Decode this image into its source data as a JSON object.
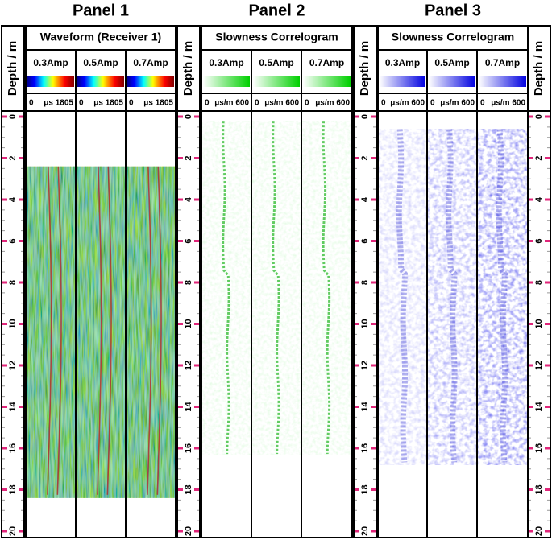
{
  "depth_axis": {
    "label": "Depth / m",
    "ylim": [
      0,
      20
    ],
    "ticks": [
      0,
      2,
      4,
      6,
      8,
      10,
      12,
      14,
      16,
      18,
      20
    ]
  },
  "panels": [
    {
      "title": "Panel 1",
      "header": "Waveform (Receiver 1)",
      "tracks": [
        {
          "label": "0.3Amp",
          "scale_min": "0",
          "scale_max": "μs 1805"
        },
        {
          "label": "0.5Amp",
          "scale_min": "0",
          "scale_max": "μs 1805"
        },
        {
          "label": "0.7Amp",
          "scale_min": "0",
          "scale_max": "μs 1805"
        }
      ]
    },
    {
      "title": "Panel 2",
      "header": "Slowness Correlogram",
      "tracks": [
        {
          "label": "0.3Amp",
          "scale_min": "0",
          "scale_max": "μs/m 600"
        },
        {
          "label": "0.5Amp",
          "scale_min": "0",
          "scale_max": "μs/m 600"
        },
        {
          "label": "0.7Amp",
          "scale_min": "0",
          "scale_max": "μs/m 600"
        }
      ]
    },
    {
      "title": "Panel 3",
      "header": "Slowness Correlogram",
      "tracks": [
        {
          "label": "0.3Amp",
          "scale_min": "0",
          "scale_max": "μs/m 600"
        },
        {
          "label": "0.5Amp",
          "scale_min": "0",
          "scale_max": "μs/m 600"
        },
        {
          "label": "0.7Amp",
          "scale_min": "0",
          "scale_max": "μs/m 600"
        }
      ]
    }
  ]
}
